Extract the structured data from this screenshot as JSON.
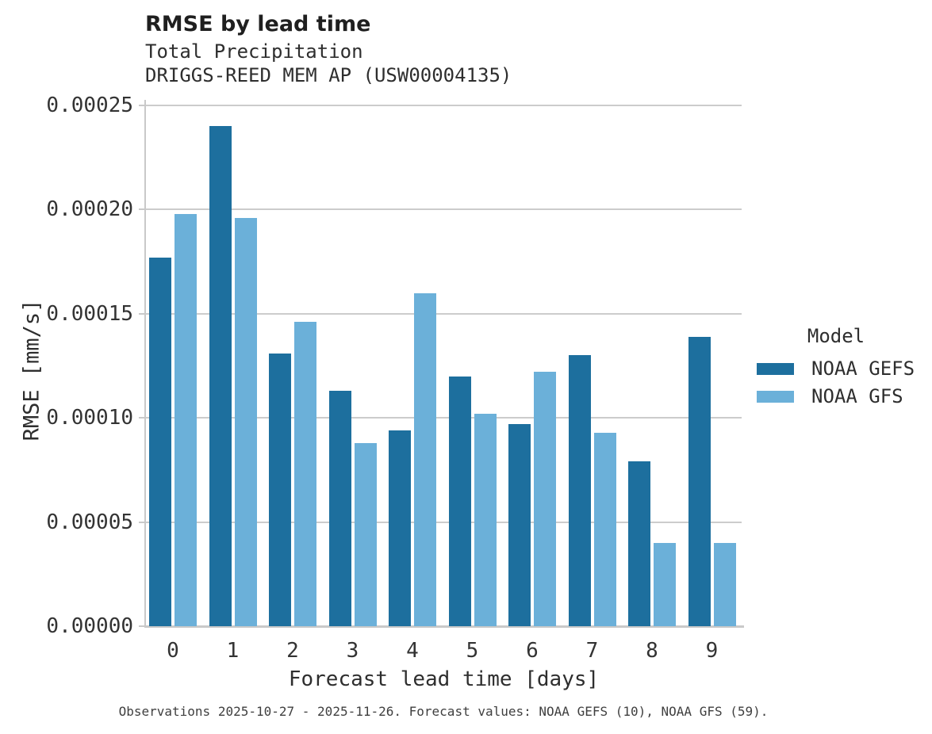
{
  "title": "RMSE by lead time",
  "subtitle_line1": "Total Precipitation",
  "subtitle_line2": "DRIGGS-REED MEM AP (USW00004135)",
  "caption": "Observations 2025-10-27 - 2025-11-26. Forecast values: NOAA GEFS (10), NOAA GFS (59).",
  "legend": {
    "title": "Model",
    "entries": [
      {
        "label": "NOAA GEFS",
        "color": "#1d6f9e"
      },
      {
        "label": "NOAA GFS",
        "color": "#6bb0d9"
      }
    ]
  },
  "colors": {
    "series_dark": "#1d6f9e",
    "series_light": "#6bb0d9",
    "gridline": "#cccccc",
    "axis_line": "#c9c9c9",
    "text": "#333333"
  },
  "chart_data": {
    "type": "bar",
    "title": "RMSE by lead time",
    "subtitle": [
      "Total Precipitation",
      "DRIGGS-REED MEM AP (USW00004135)"
    ],
    "categories": [
      "0",
      "1",
      "2",
      "3",
      "4",
      "5",
      "6",
      "7",
      "8",
      "9"
    ],
    "series": [
      {
        "name": "NOAA GEFS",
        "color": "#1d6f9e",
        "values": [
          0.000177,
          0.00024,
          0.000131,
          0.000113,
          9.4e-05,
          0.00012,
          9.7e-05,
          0.00013,
          7.9e-05,
          0.000139
        ]
      },
      {
        "name": "NOAA GFS",
        "color": "#6bb0d9",
        "values": [
          0.000198,
          0.000196,
          0.000146,
          8.8e-05,
          0.00016,
          0.000102,
          0.000122,
          9.3e-05,
          4e-05,
          4e-05
        ]
      }
    ],
    "xlabel": "Forecast lead time [days]",
    "ylabel": "RMSE [mm/s]",
    "ylim": [
      0,
      0.00025
    ],
    "yticks": [
      0,
      5e-05,
      0.0001,
      0.00015,
      0.0002,
      0.00025
    ],
    "ytick_labels": [
      "0.00000",
      "0.00005",
      "0.00010",
      "0.00015",
      "0.00020",
      "0.00025"
    ],
    "grid": true,
    "legend_title": "Model",
    "legend_position": "right",
    "footnote": "Observations 2025-10-27 - 2025-11-26. Forecast values: NOAA GEFS (10), NOAA GFS (59)."
  }
}
